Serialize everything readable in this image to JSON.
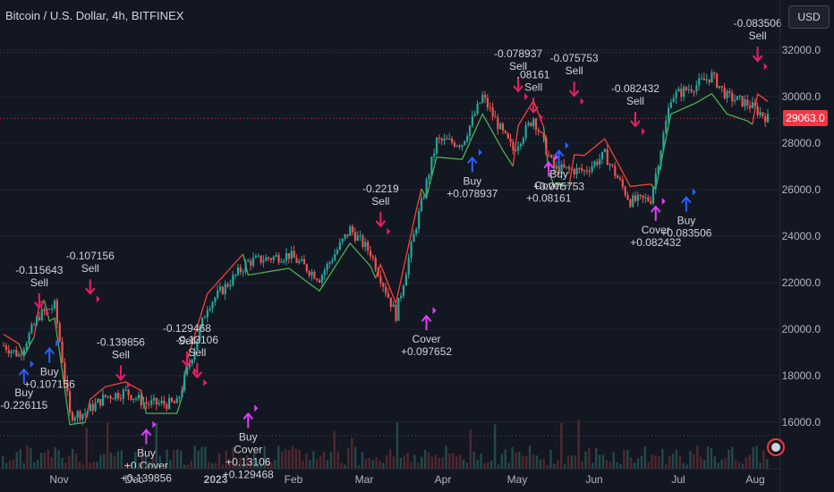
{
  "header": {
    "symbol_title": "Bitcoin / U.S. Dollar, 4h, BITFINEX",
    "currency_button": "USD"
  },
  "last_price_label": "29063.0",
  "colors": {
    "background": "#131722",
    "candle_up": "#26a69a",
    "candle_down": "#ef5350",
    "trail_long": "#4caf50",
    "trail_short": "#f44336",
    "buy_arrow": "#2962ff",
    "sell_arrow": "#e91e63",
    "cover_arrow": "#e040fb",
    "price_badge": "#f23645"
  },
  "chart_data": {
    "type": "candlestick",
    "x_axis": {
      "tick_labels": [
        "Nov",
        "Dec",
        "2023",
        "Feb",
        "Mar",
        "Apr",
        "May",
        "Jun",
        "Jul",
        "Aug"
      ]
    },
    "y_axis": {
      "range": [
        14800,
        32500
      ],
      "tick_labels": [
        "16000.0",
        "18000.0",
        "20000.0",
        "22000.0",
        "24000.0",
        "26000.0",
        "28000.0",
        "30000.0",
        "32000.0"
      ],
      "ticks": [
        16000,
        18000,
        20000,
        22000,
        24000,
        26000,
        28000,
        30000,
        32000
      ]
    },
    "last_price": 29063,
    "key_levels": [
      {
        "t": 0,
        "p": 19300
      },
      {
        "t": 3,
        "p": 18900
      },
      {
        "t": 7,
        "p": 20600
      },
      {
        "t": 10,
        "p": 21000
      },
      {
        "t": 11,
        "p": 19500
      },
      {
        "t": 13,
        "p": 16300
      },
      {
        "t": 16,
        "p": 16400
      },
      {
        "t": 20,
        "p": 17100
      },
      {
        "t": 24,
        "p": 17300
      },
      {
        "t": 28,
        "p": 16800
      },
      {
        "t": 34,
        "p": 16800
      },
      {
        "t": 40,
        "p": 21000
      },
      {
        "t": 48,
        "p": 22900
      },
      {
        "t": 56,
        "p": 23200
      },
      {
        "t": 62,
        "p": 22200
      },
      {
        "t": 68,
        "p": 24300
      },
      {
        "t": 72,
        "p": 23300
      },
      {
        "t": 77,
        "p": 20600
      },
      {
        "t": 81,
        "p": 24500
      },
      {
        "t": 85,
        "p": 28100
      },
      {
        "t": 90,
        "p": 28000
      },
      {
        "t": 94,
        "p": 30000
      },
      {
        "t": 98,
        "p": 28400
      },
      {
        "t": 100,
        "p": 27700
      },
      {
        "t": 104,
        "p": 29100
      },
      {
        "t": 108,
        "p": 26900
      },
      {
        "t": 114,
        "p": 26800
      },
      {
        "t": 118,
        "p": 27500
      },
      {
        "t": 123,
        "p": 25500
      },
      {
        "t": 127,
        "p": 25600
      },
      {
        "t": 131,
        "p": 30000
      },
      {
        "t": 136,
        "p": 30500
      },
      {
        "t": 139,
        "p": 30900
      },
      {
        "t": 142,
        "p": 30000
      },
      {
        "t": 146,
        "p": 29700
      },
      {
        "t": 150,
        "p": 29063
      }
    ],
    "trades": [
      {
        "side": "buy",
        "t": 4,
        "price": 18500,
        "lines": [
          "Buy",
          "-0.226115"
        ],
        "pos": "below"
      },
      {
        "side": "sell",
        "t": 7,
        "price": 20700,
        "lines": [
          "-0.115643",
          "Sell"
        ],
        "pos": "above"
      },
      {
        "side": "buy",
        "t": 9,
        "price": 19400,
        "lines": [
          "Buy",
          "+0.107156"
        ],
        "pos": "below"
      },
      {
        "side": "sell",
        "t": 17,
        "price": 21300,
        "lines": [
          "-0.107156",
          "Sell"
        ],
        "pos": "above"
      },
      {
        "side": "sell",
        "t": 23,
        "price": 17600,
        "lines": [
          "-0.139856",
          "Sell"
        ],
        "pos": "above"
      },
      {
        "side": "cover",
        "t": 28,
        "price": 15900,
        "lines": [
          "Buy",
          "+0.Cover",
          "+0.139856"
        ],
        "pos": "below"
      },
      {
        "side": "sell",
        "t": 36,
        "price": 18200,
        "lines": [
          "-0.129468",
          "Sell"
        ],
        "pos": "above"
      },
      {
        "side": "sell",
        "t": 38,
        "price": 17700,
        "lines": [
          "-0.13106",
          "Sell"
        ],
        "pos": "above"
      },
      {
        "side": "cover",
        "t": 48,
        "price": 16600,
        "lines": [
          "Buy",
          "Cover",
          "+0.13106",
          "+0.129468"
        ],
        "pos": "below"
      },
      {
        "side": "sell",
        "t": 74,
        "price": 24200,
        "lines": [
          "-0.2219",
          "Sell"
        ],
        "pos": "above"
      },
      {
        "side": "cover",
        "t": 83,
        "price": 20800,
        "lines": [
          "Cover",
          "+0.097652"
        ],
        "pos": "below"
      },
      {
        "side": "buy",
        "t": 92,
        "price": 27600,
        "lines": [
          "Buy",
          "+0.078937"
        ],
        "pos": "below"
      },
      {
        "side": "sell",
        "t": 101,
        "price": 30000,
        "lines": [
          "-0.078937",
          "Sell"
        ],
        "pos": "above"
      },
      {
        "side": "sell",
        "t": 104,
        "price": 29100,
        "lines": [
          ".08161",
          "Sell"
        ],
        "pos": "above"
      },
      {
        "side": "cover",
        "t": 107,
        "price": 27400,
        "lines": [
          "Cover",
          "+0.08161"
        ],
        "pos": "below"
      },
      {
        "side": "buy",
        "t": 109,
        "price": 27900,
        "lines": [
          "Buy",
          "+0.075753"
        ],
        "pos": "below"
      },
      {
        "side": "sell",
        "t": 112,
        "price": 29800,
        "lines": [
          "-0.075753",
          "Sell"
        ],
        "pos": "above"
      },
      {
        "side": "sell",
        "t": 124,
        "price": 28500,
        "lines": [
          "-0.082432",
          "Sell"
        ],
        "pos": "above"
      },
      {
        "side": "cover",
        "t": 128,
        "price": 25500,
        "lines": [
          "Cover",
          "+0.082432"
        ],
        "pos": "below"
      },
      {
        "side": "buy",
        "t": 134,
        "price": 25900,
        "lines": [
          "Buy",
          "+0.083506"
        ],
        "pos": "below"
      },
      {
        "side": "sell",
        "t": 148,
        "price": 31300,
        "lines": [
          "-0.083506",
          "Sell"
        ],
        "pos": "above"
      }
    ]
  }
}
